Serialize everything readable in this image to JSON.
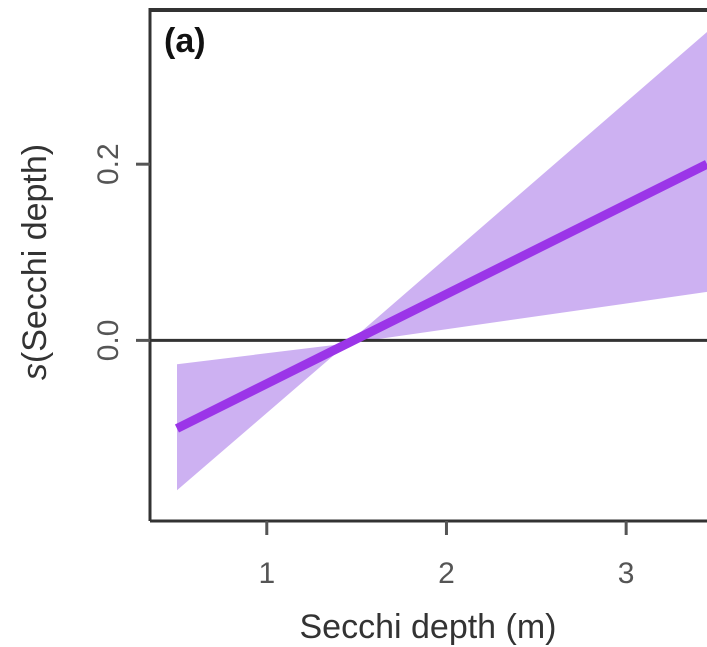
{
  "chart_data": {
    "type": "line",
    "panel_label": "(a)",
    "xlabel": "Secchi depth (m)",
    "ylabel_prefix": "s",
    "ylabel_rest": "(Secchi depth)",
    "xlim": [
      0.35,
      3.45
    ],
    "ylim": [
      -0.205,
      0.375
    ],
    "xticks": [
      1,
      2,
      3
    ],
    "xtick_labels": [
      "1",
      "2",
      "3"
    ],
    "yticks": [
      0.0,
      0.2
    ],
    "ytick_labels": [
      "0.0",
      "0.2"
    ],
    "reference_line_y": 0.0,
    "series": [
      {
        "x": [
          0.5,
          3.45
        ],
        "y": [
          -0.1,
          0.2
        ],
        "ci_lower": [
          -0.17,
          0.055
        ],
        "ci_upper": [
          -0.027,
          0.35
        ],
        "ci_pinch_x": 1.45
      }
    ],
    "colors": {
      "line": "#9b35e8",
      "band": "#cdb1f2",
      "frame": "#333333",
      "ticks": "#555555"
    }
  }
}
